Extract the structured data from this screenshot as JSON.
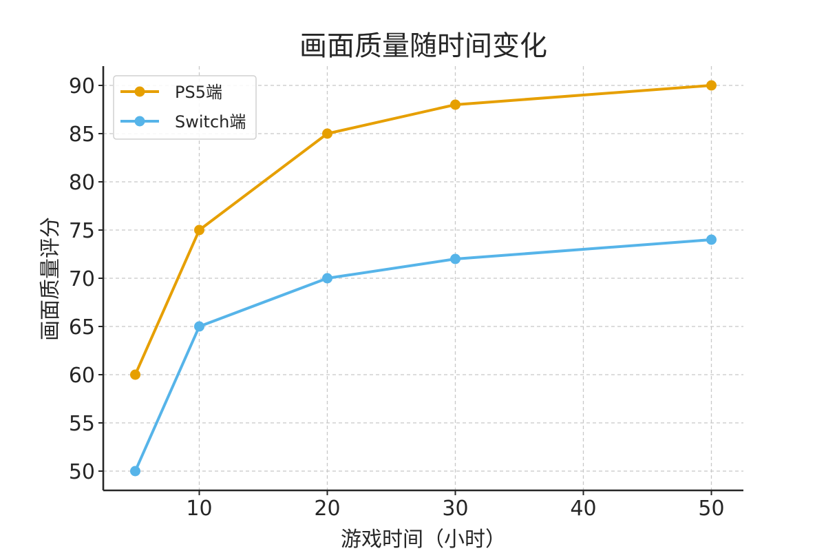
{
  "chart_data": {
    "type": "line",
    "title": "画面质量随时间变化",
    "xlabel": "游戏时间（小时）",
    "ylabel": "画面质量评分",
    "x": [
      5,
      10,
      20,
      30,
      50
    ],
    "xlim": [
      2.5,
      52.5
    ],
    "ylim": [
      48,
      92
    ],
    "xticks": [
      10,
      20,
      30,
      40,
      50
    ],
    "yticks": [
      50,
      55,
      60,
      65,
      70,
      75,
      80,
      85,
      90
    ],
    "grid": true,
    "legend_position": "top-left",
    "series": [
      {
        "name": "PS5端",
        "color": "#E69F00",
        "values": [
          60,
          75,
          85,
          88,
          90
        ]
      },
      {
        "name": "Switch端",
        "color": "#56B4E9",
        "values": [
          50,
          65,
          70,
          72,
          74
        ]
      }
    ]
  }
}
